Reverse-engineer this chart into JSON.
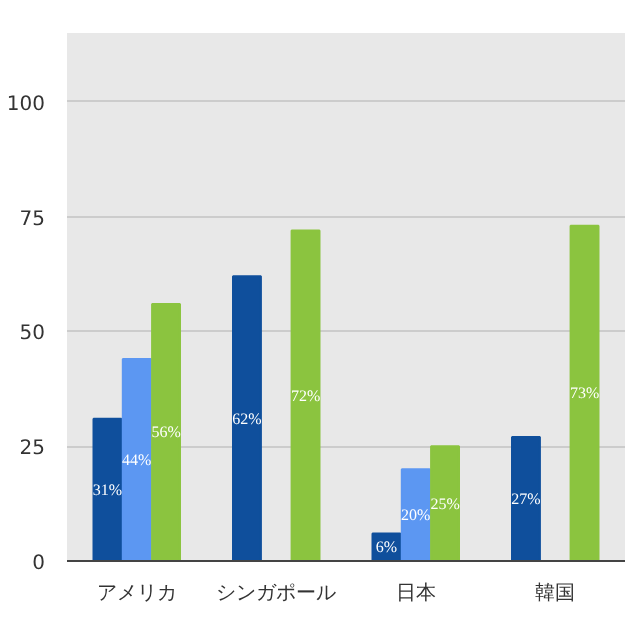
{
  "chart_data": {
    "type": "bar",
    "categories": [
      "アメリカ",
      "シンガポール",
      "日本",
      "韓国"
    ],
    "series": [
      {
        "color": "#0f4f9c",
        "values": [
          31,
          62,
          6,
          27
        ],
        "value_labels": [
          "31%",
          "62%",
          "6%",
          "27%"
        ]
      },
      {
        "color": "#5c97f2",
        "values": [
          44,
          null,
          20,
          null
        ],
        "value_labels": [
          "44%",
          null,
          "20%",
          null
        ]
      },
      {
        "color": "#8bc43f",
        "values": [
          56,
          72,
          25,
          73
        ],
        "value_labels": [
          "56%",
          "72%",
          "25%",
          "73%"
        ]
      }
    ],
    "ylim": [
      0,
      115
    ],
    "yticks": [
      0,
      25,
      50,
      75,
      100
    ],
    "grid": "y"
  }
}
